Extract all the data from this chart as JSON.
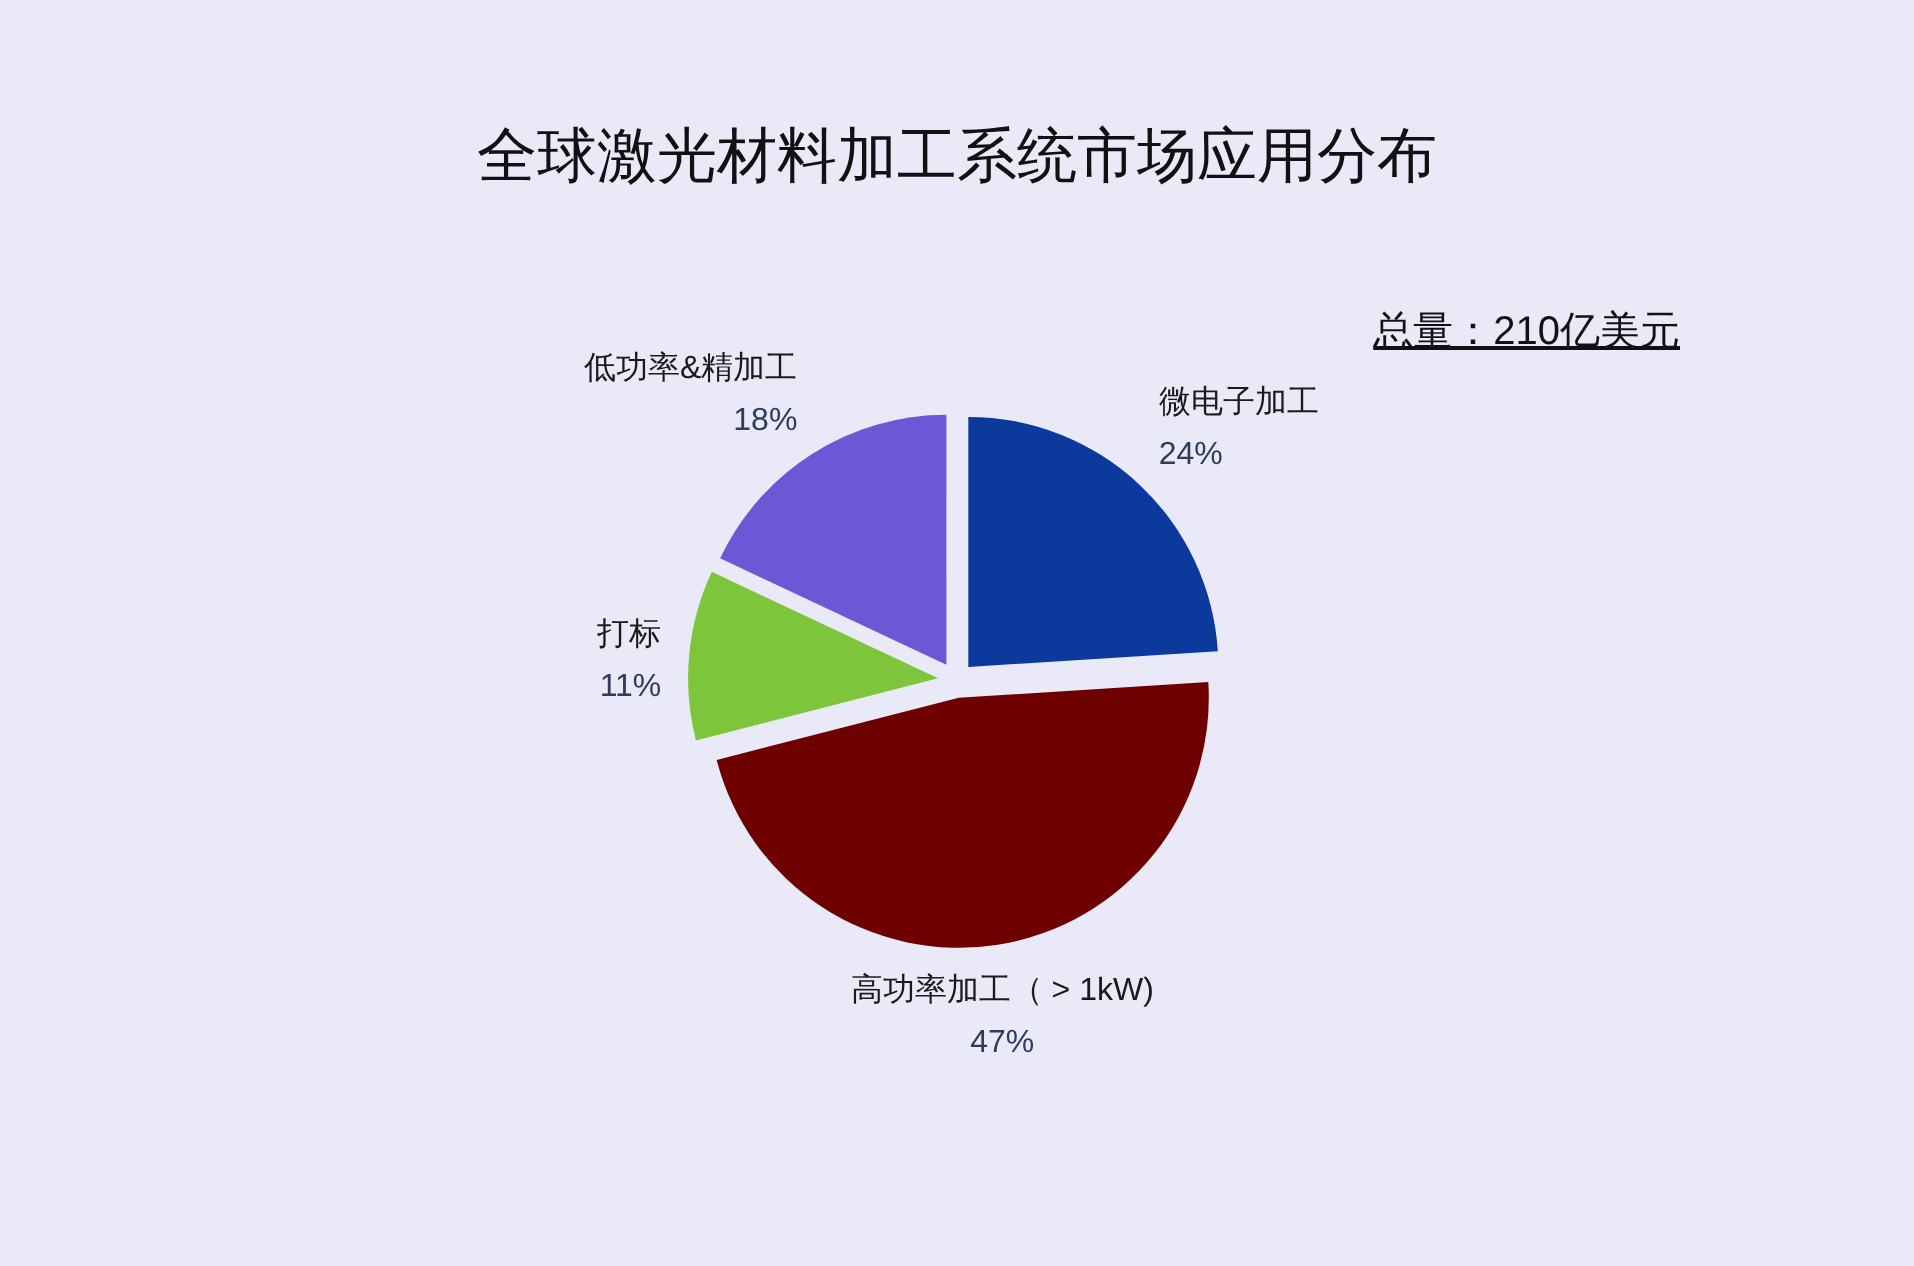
{
  "chart_data": {
    "type": "pie",
    "title": "全球激光材料加工系统市场应用分布",
    "categories": [
      "微电子加工",
      "高功率加工（ > 1kW)",
      "打标",
      "低功率&精加工"
    ],
    "values": [
      24,
      47,
      11,
      18
    ],
    "value_labels": [
      "24%",
      "47%",
      "11%",
      "18%"
    ],
    "colors": [
      "#0b3a9c",
      "#6e0000",
      "#7dc63b",
      "#6b58d6"
    ],
    "annotations": [
      "总量：210亿美元"
    ],
    "legend": false
  }
}
